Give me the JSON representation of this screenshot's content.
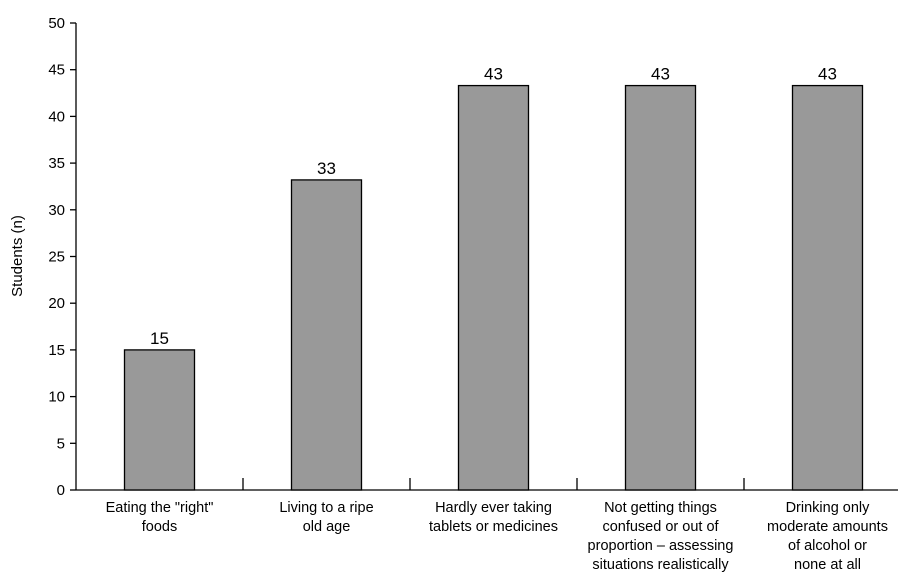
{
  "chart_data": {
    "type": "bar",
    "categories": [
      [
        "Eating the \"right\"",
        "foods"
      ],
      [
        "Living to a ripe",
        "old age"
      ],
      [
        "Hardly ever taking",
        "tablets or medicines"
      ],
      [
        "Not getting things",
        "confused or out of",
        "proportion – assessing",
        "situations realistically"
      ],
      [
        "Drinking only",
        "moderate amounts",
        "of alcohol or",
        "none at all"
      ]
    ],
    "values": [
      15,
      33,
      43,
      43,
      43
    ],
    "bar_heights": [
      15,
      33.2,
      43.3,
      43.3,
      43.3
    ],
    "data_labels": [
      "15",
      "33",
      "43",
      "43",
      "43"
    ],
    "title": "",
    "xlabel": "",
    "ylabel": "Students (n)",
    "ylim": [
      0,
      50
    ],
    "yticks": [
      0,
      5,
      10,
      15,
      20,
      25,
      30,
      35,
      40,
      45,
      50
    ],
    "grid": false,
    "legend": "none",
    "bar_color": "#999999",
    "bar_edge_color": "#000000"
  }
}
